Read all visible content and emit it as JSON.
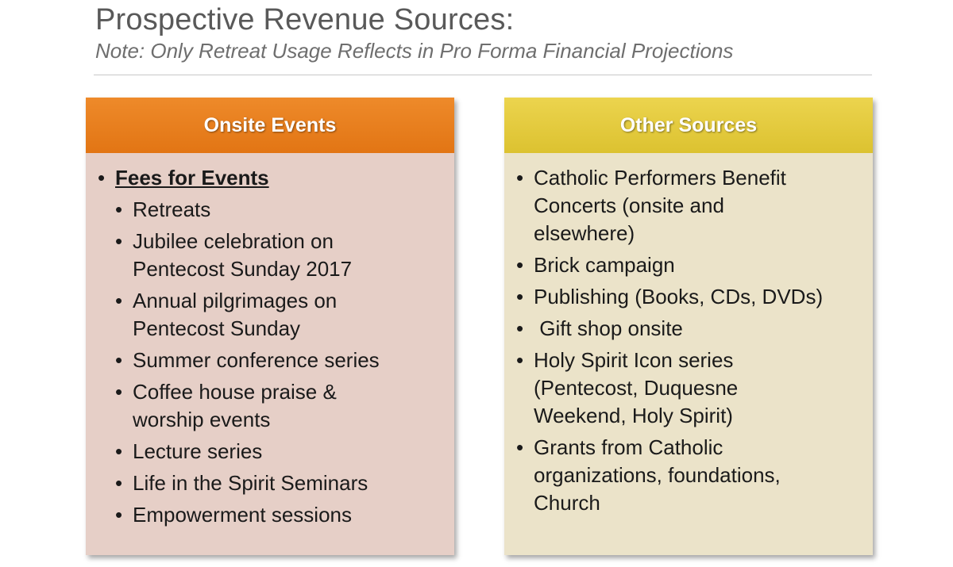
{
  "slide": {
    "title": "Prospective Revenue Sources:",
    "subtitle": "Note:  Only Retreat Usage Reflects in Pro Forma Financial Projections"
  },
  "left_panel": {
    "header": "Onsite Events",
    "top_item": "Fees for Events",
    "items": [
      "Retreats",
      "Jubilee celebration on Pentecost Sunday 2017",
      "Annual pilgrimages on Pentecost Sunday",
      "Summer conference series",
      "Coffee house praise & worship events",
      "Lecture series",
      "Life in the Spirit Seminars",
      "Empowerment sessions"
    ]
  },
  "right_panel": {
    "header": "Other Sources",
    "items": [
      "Catholic Performers Benefit Concerts (onsite and elsewhere)",
      "Brick campaign",
      "Publishing (Books, CDs, DVDs)",
      " Gift shop onsite",
      "Holy Spirit Icon series (Pentecost, Duquesne Weekend, Holy Spirit)",
      "Grants from Catholic organizations, foundations, Church"
    ]
  }
}
